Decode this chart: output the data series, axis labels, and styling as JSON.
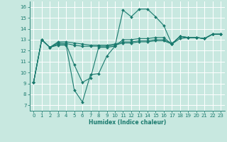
{
  "xlabel": "Humidex (Indice chaleur)",
  "xlim": [
    -0.5,
    23.5
  ],
  "ylim": [
    6.5,
    16.5
  ],
  "yticks": [
    7,
    8,
    9,
    10,
    11,
    12,
    13,
    14,
    15,
    16
  ],
  "xticks": [
    0,
    1,
    2,
    3,
    4,
    5,
    6,
    7,
    8,
    9,
    10,
    11,
    12,
    13,
    14,
    15,
    16,
    17,
    18,
    19,
    20,
    21,
    22,
    23
  ],
  "bg_color": "#c8e8e0",
  "line_color": "#1a7a6e",
  "grid_color": "#ffffff",
  "lines": [
    {
      "y": [
        9.1,
        13.0,
        12.3,
        12.5,
        12.5,
        8.4,
        7.3,
        9.8,
        9.9,
        11.5,
        12.4,
        15.7,
        15.1,
        15.8,
        15.8,
        15.1,
        14.3,
        12.6,
        13.3,
        13.2,
        13.2,
        13.1,
        13.5,
        13.5
      ]
    },
    {
      "y": [
        9.1,
        13.0,
        12.3,
        12.6,
        12.6,
        10.7,
        9.1,
        9.5,
        12.3,
        12.3,
        12.4,
        13.0,
        13.0,
        13.1,
        13.1,
        13.2,
        13.2,
        12.6,
        13.3,
        13.2,
        13.2,
        13.1,
        13.5,
        13.5
      ]
    },
    {
      "y": [
        9.1,
        13.0,
        12.3,
        12.7,
        12.65,
        12.5,
        12.4,
        12.4,
        12.4,
        12.4,
        12.5,
        12.7,
        12.7,
        12.8,
        12.8,
        12.9,
        12.9,
        12.6,
        13.1,
        13.2,
        13.2,
        13.1,
        13.5,
        13.5
      ]
    },
    {
      "y": [
        9.1,
        13.0,
        12.3,
        12.8,
        12.8,
        12.7,
        12.6,
        12.5,
        12.5,
        12.5,
        12.6,
        12.8,
        12.8,
        12.9,
        12.9,
        13.0,
        13.0,
        12.65,
        13.3,
        13.2,
        13.2,
        13.1,
        13.5,
        13.5
      ]
    }
  ]
}
